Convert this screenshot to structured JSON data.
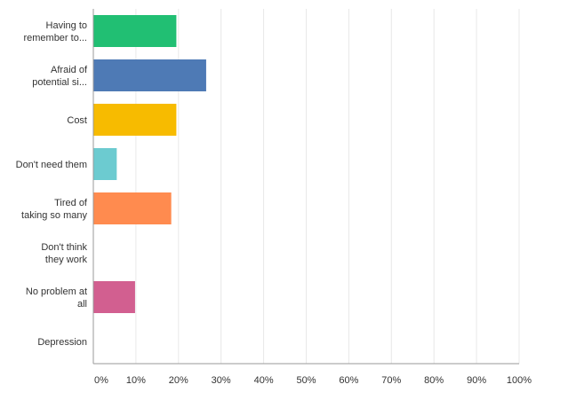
{
  "chart_data": {
    "type": "bar",
    "orientation": "horizontal",
    "categories": [
      [
        "Having to",
        "remember to..."
      ],
      [
        "Afraid of",
        "potential si..."
      ],
      [
        "Cost"
      ],
      [
        "Don't need them"
      ],
      [
        "Tired of",
        "taking so many"
      ],
      [
        "Don't think",
        "they work"
      ],
      [
        "No problem at",
        "all"
      ],
      [
        "Depression"
      ]
    ],
    "values": [
      19.5,
      26.5,
      19.5,
      5.5,
      18.3,
      0,
      9.8,
      0
    ],
    "colors": [
      "#21bf73",
      "#4e7ab5",
      "#f7bb00",
      "#6ccbd0",
      "#ff8b4f",
      "#8c6bb1",
      "#d25f90",
      "#888888"
    ],
    "xlim": [
      0,
      100
    ],
    "x_ticks": [
      "0%",
      "10%",
      "20%",
      "30%",
      "40%",
      "50%",
      "60%",
      "70%",
      "80%",
      "90%",
      "100%"
    ],
    "grid": true,
    "legend": "none",
    "title": "",
    "xlabel": "",
    "ylabel": ""
  }
}
